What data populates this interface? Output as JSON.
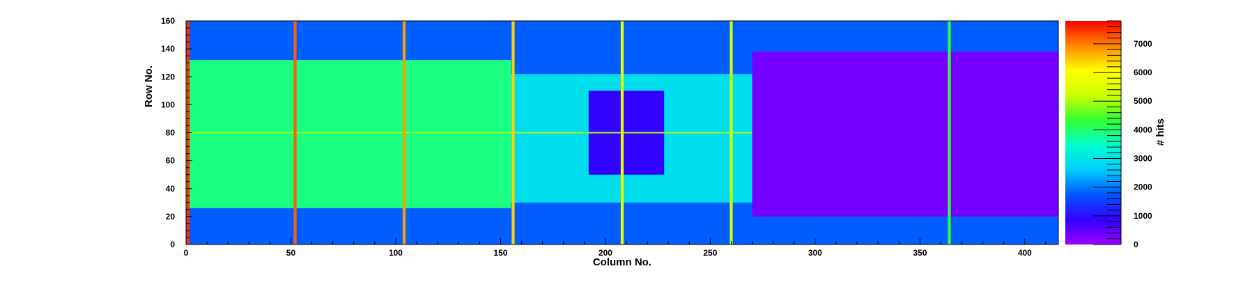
{
  "chart_data": {
    "type": "heatmap",
    "xlabel": "Column No.",
    "ylabel": "Row No.",
    "zlabel": "# hits",
    "xlim": [
      0,
      416
    ],
    "ylim": [
      0,
      160
    ],
    "zlim": [
      0,
      7800
    ],
    "x_ticks": [
      0,
      50,
      100,
      150,
      200,
      250,
      300,
      350,
      400
    ],
    "y_ticks": [
      0,
      20,
      40,
      60,
      80,
      100,
      120,
      140,
      160
    ],
    "z_ticks": [
      0,
      1000,
      2000,
      3000,
      4000,
      5000,
      6000,
      7000
    ],
    "colormap": [
      "#9900ff",
      "#3300ff",
      "#0055ff",
      "#00ccff",
      "#00ffcc",
      "#33ff33",
      "#ccff00",
      "#ffff00",
      "#ff8800",
      "#ff0000"
    ],
    "regions": [
      {
        "x": [
          0,
          416
        ],
        "y": [
          0,
          160
        ],
        "value": 1800
      },
      {
        "x": [
          0,
          155
        ],
        "y": [
          26,
          132
        ],
        "value": 3900
      },
      {
        "x": [
          155,
          270
        ],
        "y": [
          30,
          122
        ],
        "value": 2900
      },
      {
        "x": [
          270,
          416
        ],
        "y": [
          20,
          138
        ],
        "value": 300
      },
      {
        "x": [
          192,
          228
        ],
        "y": [
          50,
          110
        ],
        "value": 900
      }
    ],
    "hot_columns": [
      {
        "x": 1,
        "value": 7500
      },
      {
        "x": 52,
        "value": 7200
      },
      {
        "x": 104,
        "value": 6800
      },
      {
        "x": 156,
        "value": 6400
      },
      {
        "x": 208,
        "value": 5600
      },
      {
        "x": 260,
        "value": 5200
      },
      {
        "x": 364,
        "value": 4300
      }
    ],
    "hot_rows": [
      {
        "y": 80,
        "x": [
          0,
          270
        ],
        "value": 5000
      }
    ]
  }
}
